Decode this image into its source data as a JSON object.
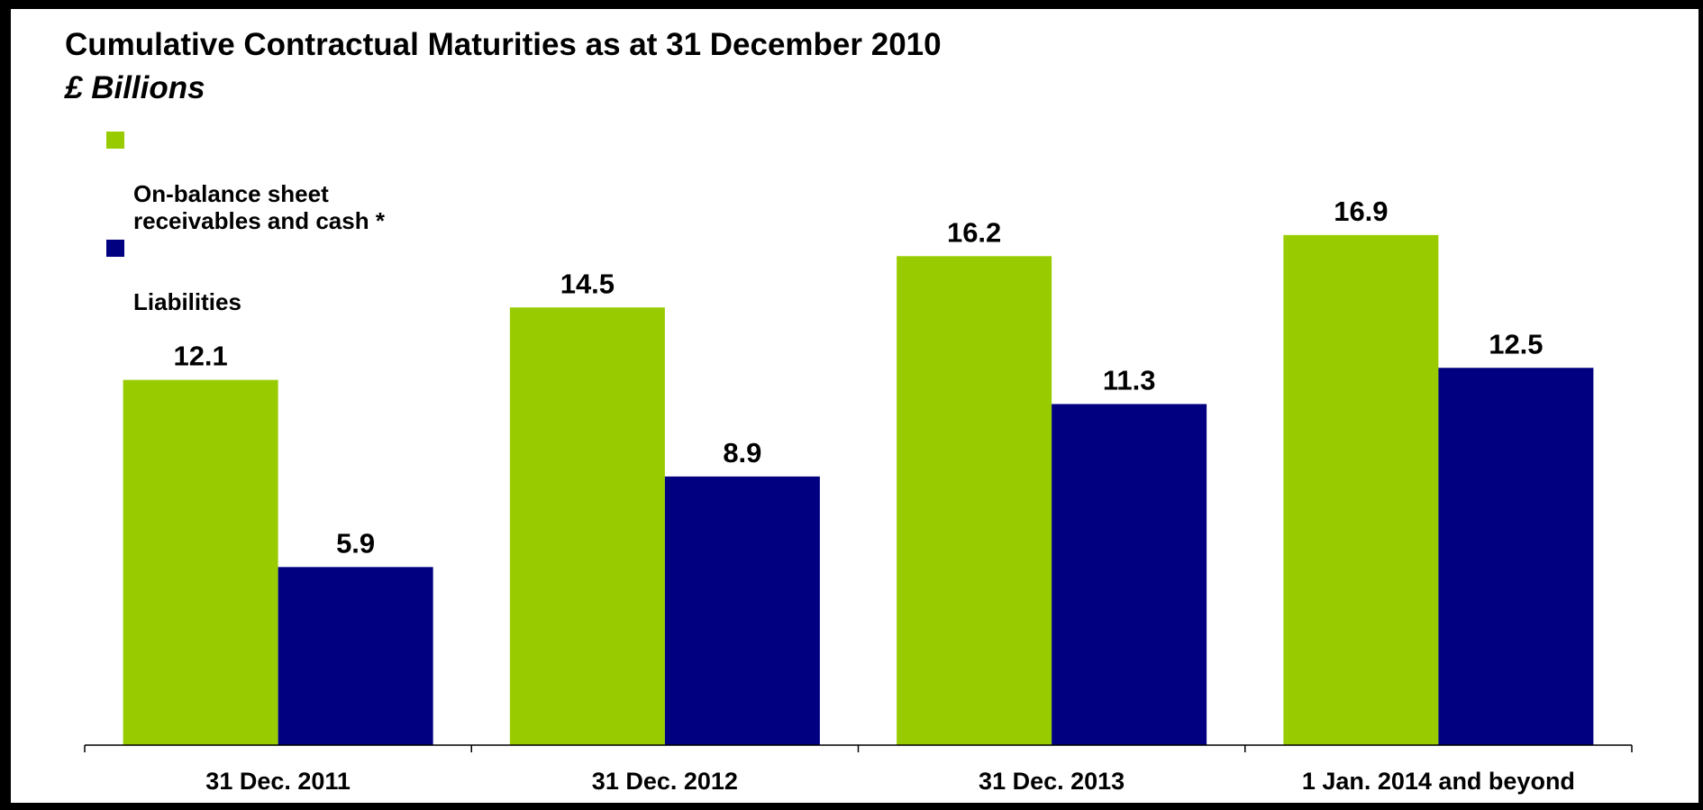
{
  "chart_data": {
    "type": "bar",
    "title": "Cumulative Contractual Maturities as at 31 December 2010",
    "subtitle": "£ Billions",
    "categories": [
      "31 Dec. 2011",
      "31 Dec. 2012",
      "31 Dec. 2013",
      "1 Jan. 2014 and beyond"
    ],
    "series": [
      {
        "name": "On-balance sheet\nreceivables and cash *",
        "color": "#99CC00",
        "values": [
          12.1,
          14.5,
          16.2,
          16.9
        ],
        "labels": [
          "12.1",
          "14.5",
          "16.2",
          "16.9"
        ]
      },
      {
        "name": "Liabilities",
        "color": "#000080",
        "values": [
          5.9,
          8.9,
          11.3,
          12.5
        ],
        "labels": [
          "5.9",
          "8.9",
          "11.3",
          "12.5"
        ]
      }
    ],
    "ylim": [
      0,
      22
    ],
    "grid": false,
    "legend_position": "top-left"
  }
}
